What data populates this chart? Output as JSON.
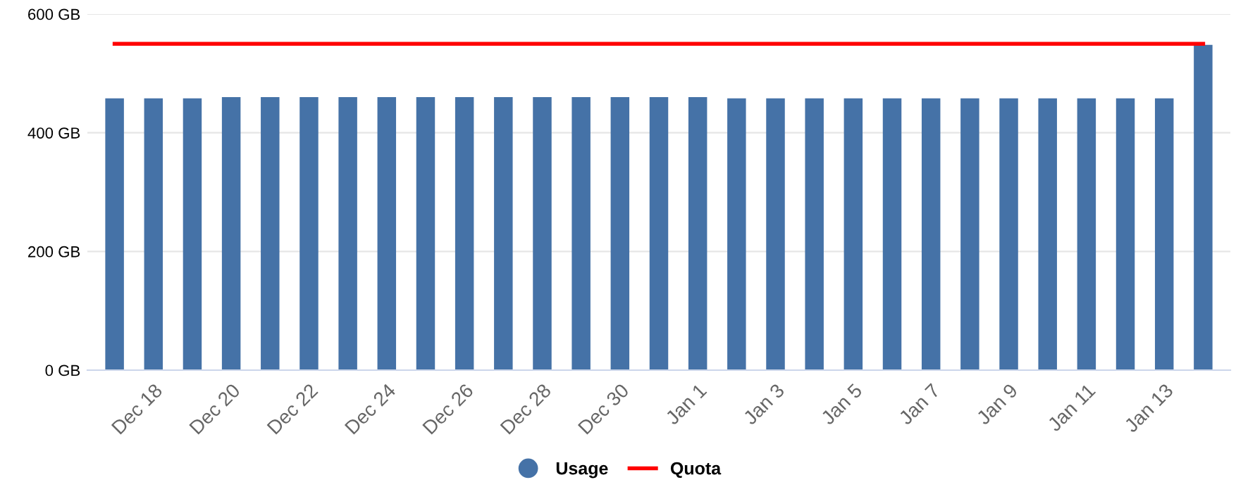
{
  "chart_data": {
    "type": "bar",
    "categories": [
      null,
      "Dec 18",
      null,
      "Dec 20",
      null,
      "Dec 22",
      null,
      "Dec 24",
      null,
      "Dec 26",
      null,
      "Dec 28",
      null,
      "Dec 30",
      null,
      "Jan 1",
      null,
      "Jan 3",
      null,
      "Jan 5",
      null,
      "Jan 7",
      null,
      "Jan 9",
      null,
      "Jan 11",
      null,
      "Jan 13",
      null
    ],
    "series": [
      {
        "name": "Usage",
        "color": "#4572a7",
        "values": [
          458,
          458,
          458,
          460,
          460,
          460,
          460,
          460,
          460,
          460,
          460,
          460,
          460,
          460,
          460,
          460,
          458,
          458,
          458,
          458,
          458,
          458,
          458,
          458,
          458,
          458,
          458,
          458,
          548
        ]
      },
      {
        "name": "Quota",
        "type": "line",
        "color": "#ff0000",
        "values": [
          550,
          550,
          550,
          550,
          550,
          550,
          550,
          550,
          550,
          550,
          550,
          550,
          550,
          550,
          550,
          550,
          550,
          550,
          550,
          550,
          550,
          550,
          550,
          550,
          550,
          550,
          550,
          550,
          550
        ]
      }
    ],
    "ylim": [
      0,
      600
    ],
    "yticks": [
      {
        "value": 0,
        "label": "0 GB"
      },
      {
        "value": 200,
        "label": "200 GB"
      },
      {
        "value": 400,
        "label": "400 GB"
      },
      {
        "value": 600,
        "label": "600 GB"
      }
    ],
    "grid": "y",
    "legend": "bottom",
    "marker": "none"
  }
}
